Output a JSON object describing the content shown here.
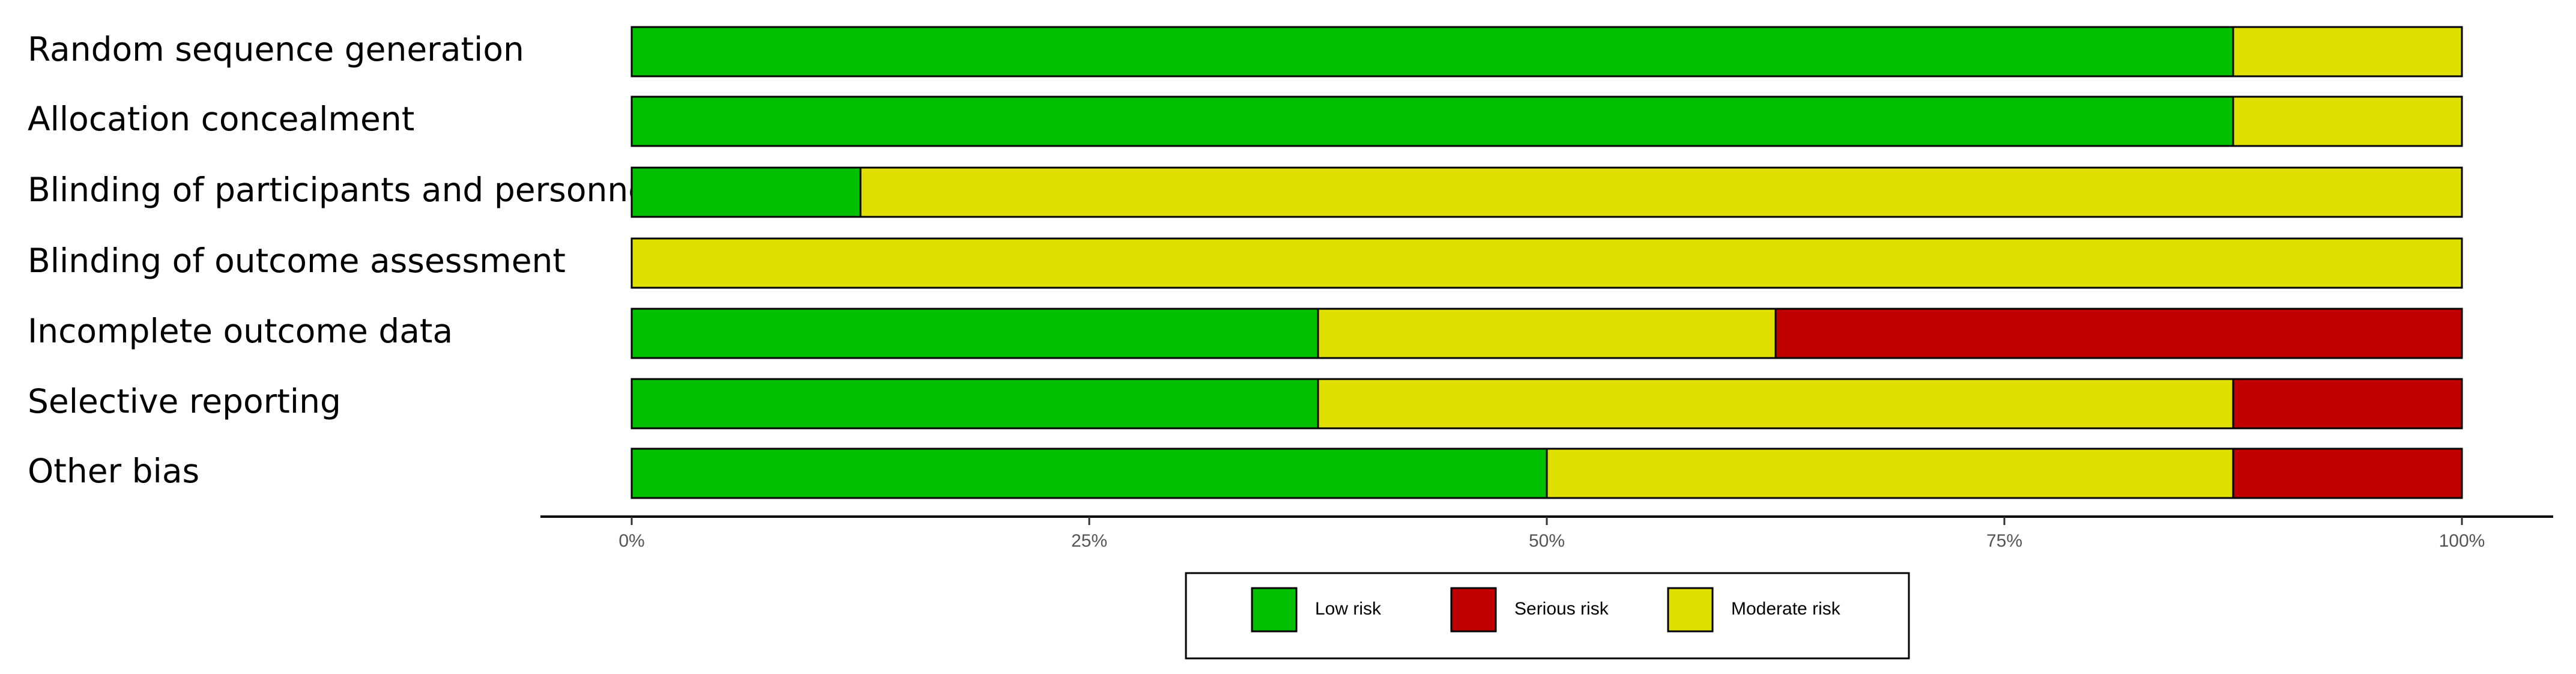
{
  "chart_data": {
    "type": "bar",
    "orientation": "horizontal",
    "stacked": true,
    "normalized": true,
    "title": "",
    "xlabel": "",
    "ylabel": "",
    "xlim": [
      0,
      1
    ],
    "grid": false,
    "legend_position": "bottom",
    "categories": [
      "Random sequence generation",
      "Allocation concealment",
      "Blinding of participants and personnel",
      "Blinding of outcome assessment",
      "Incomplete outcome data",
      "Selective reporting",
      "Other bias"
    ],
    "series": [
      {
        "name": "Low risk",
        "color": "#00c000",
        "values": [
          0.875,
          0.875,
          0.125,
          0.0,
          0.375,
          0.375,
          0.5
        ]
      },
      {
        "name": "Moderate risk",
        "color": "#e0e000",
        "values": [
          0.125,
          0.125,
          0.875,
          1.0,
          0.25,
          0.5,
          0.375
        ]
      },
      {
        "name": "Serious risk",
        "color": "#c00000",
        "values": [
          0.0,
          0.0,
          0.0,
          0.0,
          0.375,
          0.125,
          0.125
        ]
      }
    ],
    "x_ticks": [
      {
        "value": 0,
        "label": "0%"
      },
      {
        "value": 0.25,
        "label": "25%"
      },
      {
        "value": 0.5,
        "label": "50%"
      },
      {
        "value": 0.75,
        "label": "75%"
      },
      {
        "value": 1,
        "label": "100%"
      }
    ],
    "legend": [
      {
        "name": "Low risk",
        "color": "#00c000"
      },
      {
        "name": "Serious risk",
        "color": "#c00000"
      },
      {
        "name": "Moderate risk",
        "color": "#e0e000"
      }
    ]
  }
}
